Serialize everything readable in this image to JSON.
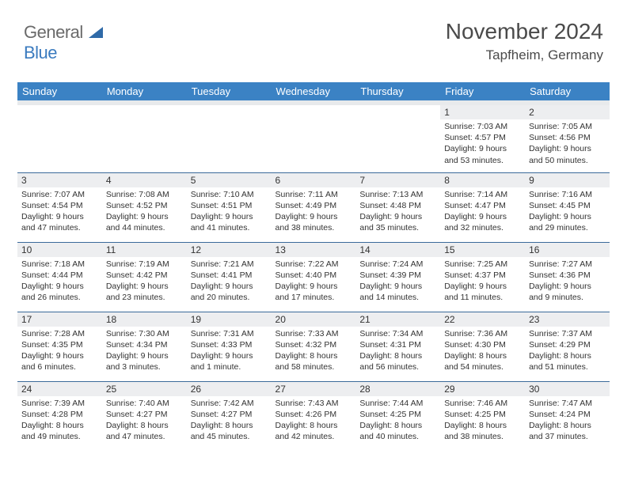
{
  "logo": {
    "part1": "General",
    "part2": "Blue"
  },
  "header": {
    "month": "November 2024",
    "location": "Tapfheim, Germany"
  },
  "colors": {
    "header_bg": "#3b82c4",
    "header_text": "#ffffff",
    "daynum_bg": "#edeef0",
    "row_border": "#3b6a9a",
    "logo_gray": "#6a6a6a",
    "logo_blue": "#3b7bbf",
    "triangle_fill": "#2f6aa8"
  },
  "weekdays": [
    "Sunday",
    "Monday",
    "Tuesday",
    "Wednesday",
    "Thursday",
    "Friday",
    "Saturday"
  ],
  "weeks": [
    [
      {
        "n": "",
        "sr": "",
        "ss": "",
        "dl": ""
      },
      {
        "n": "",
        "sr": "",
        "ss": "",
        "dl": ""
      },
      {
        "n": "",
        "sr": "",
        "ss": "",
        "dl": ""
      },
      {
        "n": "",
        "sr": "",
        "ss": "",
        "dl": ""
      },
      {
        "n": "",
        "sr": "",
        "ss": "",
        "dl": ""
      },
      {
        "n": "1",
        "sr": "Sunrise: 7:03 AM",
        "ss": "Sunset: 4:57 PM",
        "dl": "Daylight: 9 hours and 53 minutes."
      },
      {
        "n": "2",
        "sr": "Sunrise: 7:05 AM",
        "ss": "Sunset: 4:56 PM",
        "dl": "Daylight: 9 hours and 50 minutes."
      }
    ],
    [
      {
        "n": "3",
        "sr": "Sunrise: 7:07 AM",
        "ss": "Sunset: 4:54 PM",
        "dl": "Daylight: 9 hours and 47 minutes."
      },
      {
        "n": "4",
        "sr": "Sunrise: 7:08 AM",
        "ss": "Sunset: 4:52 PM",
        "dl": "Daylight: 9 hours and 44 minutes."
      },
      {
        "n": "5",
        "sr": "Sunrise: 7:10 AM",
        "ss": "Sunset: 4:51 PM",
        "dl": "Daylight: 9 hours and 41 minutes."
      },
      {
        "n": "6",
        "sr": "Sunrise: 7:11 AM",
        "ss": "Sunset: 4:49 PM",
        "dl": "Daylight: 9 hours and 38 minutes."
      },
      {
        "n": "7",
        "sr": "Sunrise: 7:13 AM",
        "ss": "Sunset: 4:48 PM",
        "dl": "Daylight: 9 hours and 35 minutes."
      },
      {
        "n": "8",
        "sr": "Sunrise: 7:14 AM",
        "ss": "Sunset: 4:47 PM",
        "dl": "Daylight: 9 hours and 32 minutes."
      },
      {
        "n": "9",
        "sr": "Sunrise: 7:16 AM",
        "ss": "Sunset: 4:45 PM",
        "dl": "Daylight: 9 hours and 29 minutes."
      }
    ],
    [
      {
        "n": "10",
        "sr": "Sunrise: 7:18 AM",
        "ss": "Sunset: 4:44 PM",
        "dl": "Daylight: 9 hours and 26 minutes."
      },
      {
        "n": "11",
        "sr": "Sunrise: 7:19 AM",
        "ss": "Sunset: 4:42 PM",
        "dl": "Daylight: 9 hours and 23 minutes."
      },
      {
        "n": "12",
        "sr": "Sunrise: 7:21 AM",
        "ss": "Sunset: 4:41 PM",
        "dl": "Daylight: 9 hours and 20 minutes."
      },
      {
        "n": "13",
        "sr": "Sunrise: 7:22 AM",
        "ss": "Sunset: 4:40 PM",
        "dl": "Daylight: 9 hours and 17 minutes."
      },
      {
        "n": "14",
        "sr": "Sunrise: 7:24 AM",
        "ss": "Sunset: 4:39 PM",
        "dl": "Daylight: 9 hours and 14 minutes."
      },
      {
        "n": "15",
        "sr": "Sunrise: 7:25 AM",
        "ss": "Sunset: 4:37 PM",
        "dl": "Daylight: 9 hours and 11 minutes."
      },
      {
        "n": "16",
        "sr": "Sunrise: 7:27 AM",
        "ss": "Sunset: 4:36 PM",
        "dl": "Daylight: 9 hours and 9 minutes."
      }
    ],
    [
      {
        "n": "17",
        "sr": "Sunrise: 7:28 AM",
        "ss": "Sunset: 4:35 PM",
        "dl": "Daylight: 9 hours and 6 minutes."
      },
      {
        "n": "18",
        "sr": "Sunrise: 7:30 AM",
        "ss": "Sunset: 4:34 PM",
        "dl": "Daylight: 9 hours and 3 minutes."
      },
      {
        "n": "19",
        "sr": "Sunrise: 7:31 AM",
        "ss": "Sunset: 4:33 PM",
        "dl": "Daylight: 9 hours and 1 minute."
      },
      {
        "n": "20",
        "sr": "Sunrise: 7:33 AM",
        "ss": "Sunset: 4:32 PM",
        "dl": "Daylight: 8 hours and 58 minutes."
      },
      {
        "n": "21",
        "sr": "Sunrise: 7:34 AM",
        "ss": "Sunset: 4:31 PM",
        "dl": "Daylight: 8 hours and 56 minutes."
      },
      {
        "n": "22",
        "sr": "Sunrise: 7:36 AM",
        "ss": "Sunset: 4:30 PM",
        "dl": "Daylight: 8 hours and 54 minutes."
      },
      {
        "n": "23",
        "sr": "Sunrise: 7:37 AM",
        "ss": "Sunset: 4:29 PM",
        "dl": "Daylight: 8 hours and 51 minutes."
      }
    ],
    [
      {
        "n": "24",
        "sr": "Sunrise: 7:39 AM",
        "ss": "Sunset: 4:28 PM",
        "dl": "Daylight: 8 hours and 49 minutes."
      },
      {
        "n": "25",
        "sr": "Sunrise: 7:40 AM",
        "ss": "Sunset: 4:27 PM",
        "dl": "Daylight: 8 hours and 47 minutes."
      },
      {
        "n": "26",
        "sr": "Sunrise: 7:42 AM",
        "ss": "Sunset: 4:27 PM",
        "dl": "Daylight: 8 hours and 45 minutes."
      },
      {
        "n": "27",
        "sr": "Sunrise: 7:43 AM",
        "ss": "Sunset: 4:26 PM",
        "dl": "Daylight: 8 hours and 42 minutes."
      },
      {
        "n": "28",
        "sr": "Sunrise: 7:44 AM",
        "ss": "Sunset: 4:25 PM",
        "dl": "Daylight: 8 hours and 40 minutes."
      },
      {
        "n": "29",
        "sr": "Sunrise: 7:46 AM",
        "ss": "Sunset: 4:25 PM",
        "dl": "Daylight: 8 hours and 38 minutes."
      },
      {
        "n": "30",
        "sr": "Sunrise: 7:47 AM",
        "ss": "Sunset: 4:24 PM",
        "dl": "Daylight: 8 hours and 37 minutes."
      }
    ]
  ]
}
